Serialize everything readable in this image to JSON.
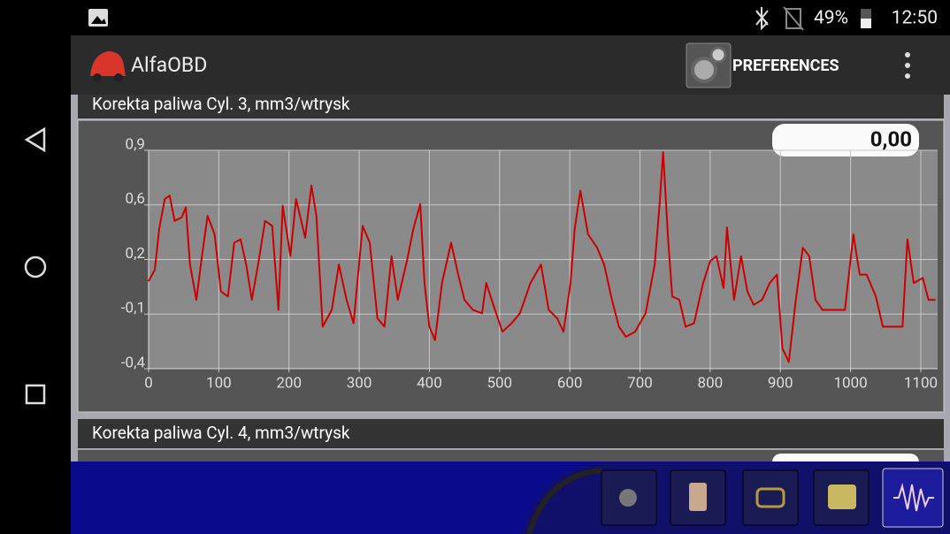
{
  "status_bar": {
    "battery": "49%",
    "time": "12:50"
  },
  "app_bar": {
    "title": "AlfaOBD",
    "button": "PREFERENCES"
  },
  "chart_data": {
    "type": "line",
    "title": "Korekta paliwa Cyl. 3, mm3/wtrysk",
    "current_value": "0,00",
    "color": "#cc0000",
    "grid": true,
    "xlim": [
      0,
      1124
    ],
    "xticks": [
      0,
      100,
      200,
      300,
      400,
      500,
      600,
      700,
      800,
      900,
      1000,
      1100
    ],
    "ylim": [
      -0.4,
      0.9
    ],
    "yticks": [
      {
        "value": -0.4,
        "label": "-0,4"
      },
      {
        "value": -0.075,
        "label": "-0,1"
      },
      {
        "value": 0.25,
        "label": "0,2"
      },
      {
        "value": 0.575,
        "label": "0,6"
      },
      {
        "value": 0.9,
        "label": "0,9"
      }
    ],
    "x": [
      0,
      9,
      15,
      23,
      30,
      37,
      47,
      53,
      59,
      68,
      76,
      84,
      94,
      103,
      113,
      122,
      131,
      139,
      147,
      156,
      166,
      176,
      185,
      191,
      202,
      210,
      223,
      232,
      239,
      248,
      261,
      271,
      282,
      292,
      305,
      315,
      326,
      336,
      346,
      355,
      368,
      377,
      387,
      393,
      400,
      408,
      418,
      431,
      441,
      450,
      462,
      475,
      481,
      491,
      504,
      517,
      529,
      544,
      559,
      570,
      582,
      591,
      601,
      607,
      615,
      626,
      639,
      649,
      660,
      670,
      680,
      693,
      708,
      721,
      728,
      733,
      740,
      746,
      756,
      765,
      777,
      790,
      800,
      809,
      819,
      824,
      834,
      844,
      853,
      862,
      874,
      885,
      895,
      903,
      912,
      922,
      932,
      941,
      950,
      960,
      992,
      1004,
      1013,
      1023,
      1036,
      1046,
      1074,
      1081,
      1090,
      1103,
      1111,
      1121
    ],
    "values": [
      0.12,
      0.19,
      0.43,
      0.61,
      0.63,
      0.48,
      0.5,
      0.56,
      0.22,
      0.01,
      0.27,
      0.51,
      0.4,
      0.06,
      0.03,
      0.35,
      0.37,
      0.22,
      0.01,
      0.22,
      0.48,
      0.45,
      -0.05,
      0.57,
      0.27,
      0.61,
      0.38,
      0.69,
      0.51,
      -0.15,
      -0.05,
      0.22,
      0.01,
      -0.13,
      0.45,
      0.35,
      -0.1,
      -0.15,
      0.27,
      0.01,
      0.24,
      0.43,
      0.58,
      0.11,
      -0.15,
      -0.23,
      0.11,
      0.35,
      0.16,
      0.01,
      -0.05,
      -0.07,
      0.11,
      -0.02,
      -0.18,
      -0.13,
      -0.07,
      0.11,
      0.22,
      -0.05,
      -0.1,
      -0.18,
      0.11,
      0.43,
      0.66,
      0.4,
      0.32,
      0.22,
      0.01,
      -0.15,
      -0.21,
      -0.18,
      -0.07,
      0.22,
      0.58,
      0.89,
      0.37,
      0.03,
      0.01,
      -0.15,
      -0.13,
      0.11,
      0.24,
      0.27,
      0.08,
      0.44,
      0.01,
      0.27,
      0.06,
      -0.02,
      0.01,
      0.11,
      0.16,
      -0.28,
      -0.36,
      0.01,
      0.32,
      0.27,
      0.01,
      -0.05,
      -0.05,
      0.4,
      0.16,
      0.16,
      0.03,
      -0.15,
      -0.15,
      0.37,
      0.11,
      0.14,
      0.01,
      0.01
    ]
  },
  "next_panel": {
    "title": "Korekta paliwa Cyl. 4, mm3/wtrysk"
  }
}
